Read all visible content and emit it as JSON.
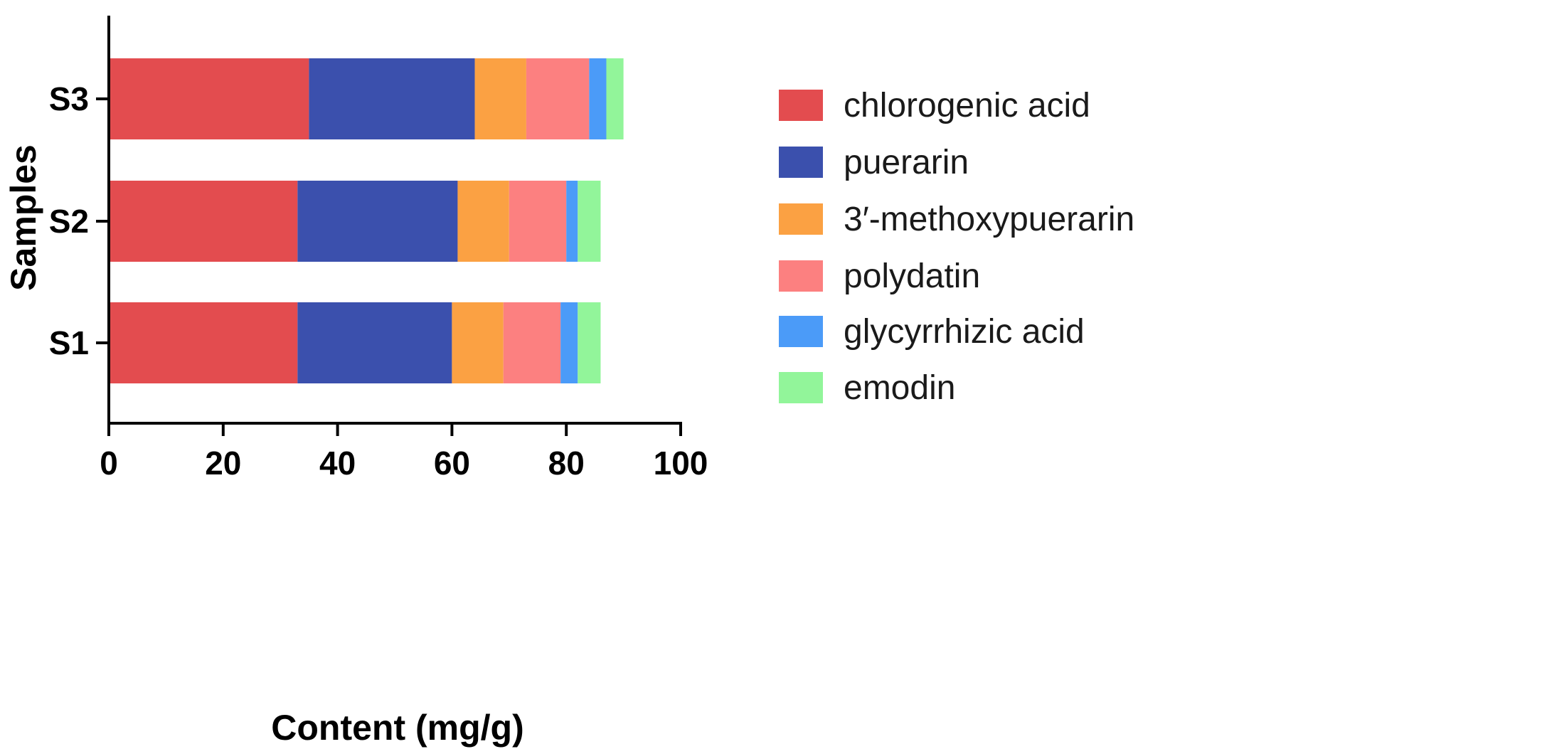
{
  "chart_data": {
    "type": "bar",
    "orientation": "horizontal",
    "stacked": true,
    "categories": [
      "S1",
      "S2",
      "S3"
    ],
    "series": [
      {
        "name": "chlorogenic acid",
        "color": "#e34c4f",
        "values": [
          33,
          33,
          35
        ]
      },
      {
        "name": "puerarin",
        "color": "#3b50ad",
        "values": [
          27,
          28,
          29
        ]
      },
      {
        "name": "3′-methoxypuerarin",
        "color": "#fba143",
        "values": [
          9,
          9,
          9
        ]
      },
      {
        "name": "polydatin",
        "color": "#fc8080",
        "values": [
          10,
          10,
          11
        ]
      },
      {
        "name": "glycyrrhizic acid",
        "color": "#4b9bf8",
        "values": [
          3,
          2,
          3
        ]
      },
      {
        "name": "emodin",
        "color": "#92f59a",
        "values": [
          4,
          4,
          3
        ]
      }
    ],
    "xlabel": "Content (mg/g)",
    "ylabel": "Samples",
    "xlim": [
      0,
      100
    ],
    "xticks": [
      "0",
      "20",
      "40",
      "60",
      "80",
      "100"
    ],
    "grid": false,
    "legend_position": "right"
  }
}
